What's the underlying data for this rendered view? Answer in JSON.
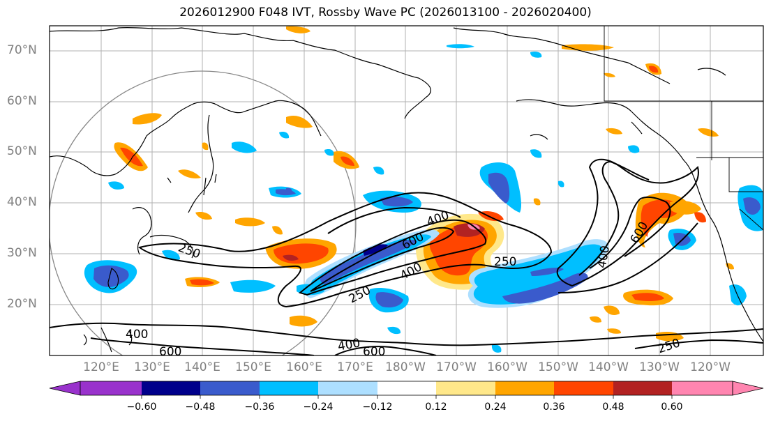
{
  "title": "2026012900 F048 IVT, Rossby Wave PC (2026013100 - 2026020400)",
  "lat_labels": [
    "70°N",
    "60°N",
    "50°N",
    "40°N",
    "30°N",
    "20°N"
  ],
  "lon_labels": [
    "120°E",
    "130°E",
    "140°E",
    "150°E",
    "160°E",
    "170°E",
    "180°W",
    "170°W",
    "160°W",
    "150°W",
    "140°W",
    "130°W",
    "120°W"
  ],
  "colorbar": {
    "ticks": [
      "−0.60",
      "−0.48",
      "−0.36",
      "−0.24",
      "−0.12",
      "0.12",
      "0.24",
      "0.36",
      "0.48",
      "0.60"
    ],
    "colors": [
      "#9932CC",
      "#00008B",
      "#3A5BCC",
      "#00BFFF",
      "#ADDFFF",
      "#FFFFFF",
      "#FFE88A",
      "#FFA500",
      "#FF4500",
      "#B22222",
      "#FF85B0"
    ]
  },
  "contour_labels": [
    "250",
    "400",
    "600",
    "250",
    "400",
    "600",
    "250",
    "400",
    "600",
    "400",
    "250",
    "400",
    "600",
    "250"
  ]
}
